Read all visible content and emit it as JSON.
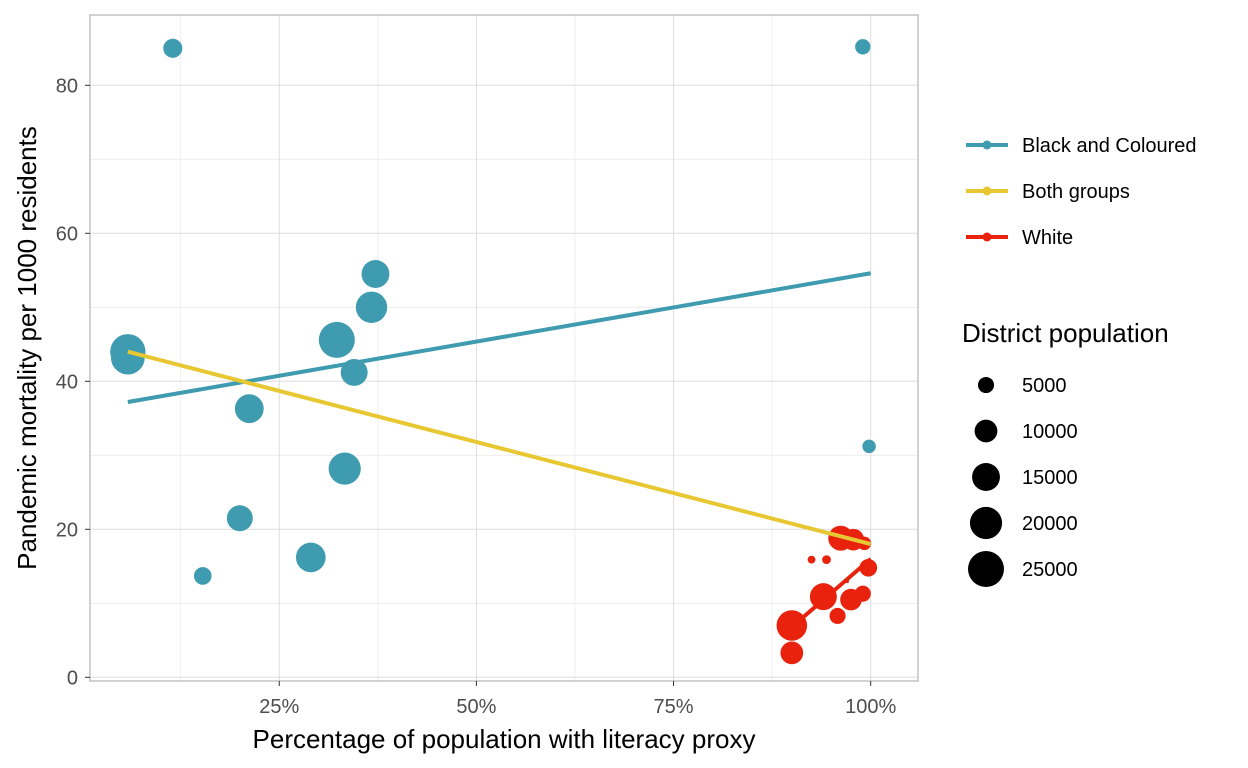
{
  "chart_data": {
    "type": "scatter",
    "xlabel": "Percentage of population with literacy proxy",
    "ylabel": "Pandemic mortality per 1000 residents",
    "xlim": [
      0.01,
      1.06
    ],
    "ylim": [
      -0.5,
      89.5
    ],
    "x_ticks": [
      0.25,
      0.5,
      0.75,
      1.0
    ],
    "x_tick_labels": [
      "25%",
      "50%",
      "75%",
      "100%"
    ],
    "y_ticks": [
      0,
      20,
      40,
      60,
      80
    ],
    "y_tick_labels": [
      "0",
      "20",
      "40",
      "60",
      "80"
    ],
    "grid": true,
    "legend_colour_entries": [
      {
        "label": "Black and Coloured",
        "color": "#3E9BB0"
      },
      {
        "label": "Both groups",
        "color": "#E8C832"
      },
      {
        "label": "White",
        "color": "#E8220D"
      }
    ],
    "size_legend": {
      "title": "District population",
      "values": [
        5000,
        10000,
        15000,
        20000,
        25000
      ],
      "labels": [
        "5000",
        "10000",
        "15000",
        "20000",
        "25000"
      ]
    },
    "series": [
      {
        "group": "black_coloured",
        "color": "#3E9BB0",
        "points": [
          {
            "x": 0.058,
            "y": 43.2,
            "pop": 22000
          },
          {
            "x": 0.058,
            "y": 44.0,
            "pop": 24000
          },
          {
            "x": 0.115,
            "y": 85.0,
            "pop": 7000
          },
          {
            "x": 0.153,
            "y": 13.7,
            "pop": 6000
          },
          {
            "x": 0.2,
            "y": 21.5,
            "pop": 13000
          },
          {
            "x": 0.212,
            "y": 36.3,
            "pop": 16000
          },
          {
            "x": 0.29,
            "y": 16.2,
            "pop": 17000
          },
          {
            "x": 0.323,
            "y": 45.6,
            "pop": 25000
          },
          {
            "x": 0.333,
            "y": 28.2,
            "pop": 20000
          },
          {
            "x": 0.345,
            "y": 41.2,
            "pop": 14000
          },
          {
            "x": 0.367,
            "y": 50.0,
            "pop": 19000
          },
          {
            "x": 0.372,
            "y": 54.5,
            "pop": 15000
          },
          {
            "x": 0.99,
            "y": 85.2,
            "pop": 4500
          },
          {
            "x": 0.998,
            "y": 31.2,
            "pop": 3500
          }
        ]
      },
      {
        "group": "white",
        "color": "#E8220D",
        "points": [
          {
            "x": 0.9,
            "y": 3.3,
            "pop": 10000
          },
          {
            "x": 0.9,
            "y": 7.0,
            "pop": 18000
          },
          {
            "x": 0.925,
            "y": 15.9,
            "pop": 1200
          },
          {
            "x": 0.94,
            "y": 10.9,
            "pop": 14000
          },
          {
            "x": 0.944,
            "y": 15.9,
            "pop": 1500
          },
          {
            "x": 0.958,
            "y": 8.3,
            "pop": 5000
          },
          {
            "x": 0.962,
            "y": 18.8,
            "pop": 12000
          },
          {
            "x": 0.97,
            "y": 13.0,
            "pop": 300
          },
          {
            "x": 0.975,
            "y": 10.5,
            "pop": 9000
          },
          {
            "x": 0.978,
            "y": 18.6,
            "pop": 9000
          },
          {
            "x": 0.99,
            "y": 11.3,
            "pop": 5000
          },
          {
            "x": 0.992,
            "y": 18.1,
            "pop": 3500
          },
          {
            "x": 0.997,
            "y": 14.8,
            "pop": 6000
          }
        ]
      }
    ],
    "trend_lines": [
      {
        "group": "black_coloured",
        "color": "#3E9BB0",
        "x": [
          0.058,
          1.0
        ],
        "y": [
          37.2,
          54.6
        ]
      },
      {
        "group": "both",
        "color": "#E8C832",
        "x": [
          0.058,
          1.0
        ],
        "y": [
          44.0,
          18.0
        ]
      },
      {
        "group": "white",
        "color": "#E8220D",
        "x": [
          0.9,
          1.0
        ],
        "y": [
          6.8,
          16.0
        ]
      }
    ]
  }
}
